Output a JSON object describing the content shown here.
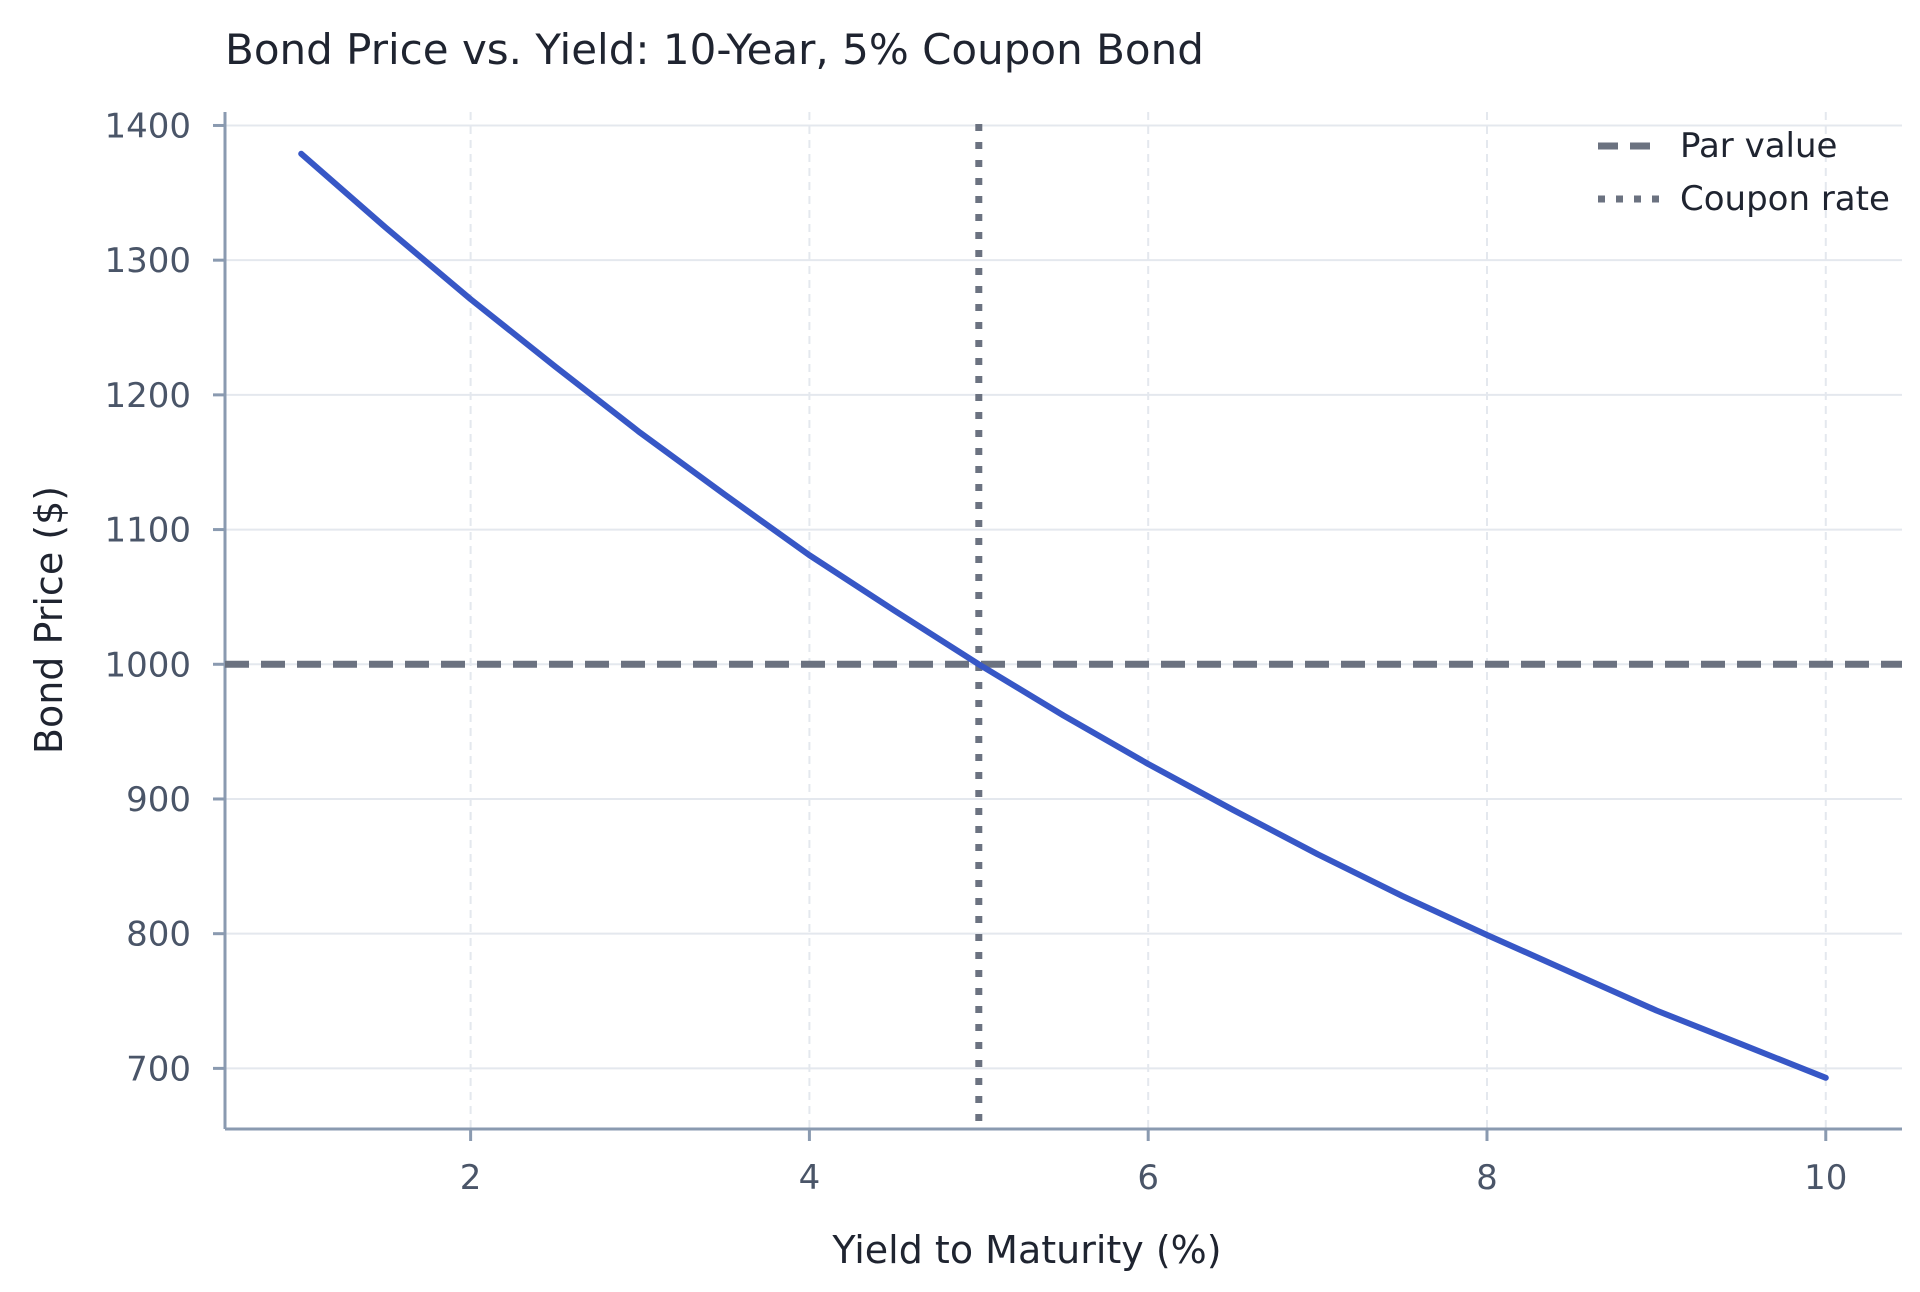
{
  "chart_data": {
    "type": "line",
    "title": "Bond Price vs. Yield: 10-Year, 5% Coupon Bond",
    "xlabel": "Yield to Maturity (%)",
    "ylabel": "Bond Price ($)",
    "xlim": [
      0.55,
      10.45
    ],
    "ylim": [
      655,
      1410
    ],
    "xticks": [
      2,
      4,
      6,
      8,
      10
    ],
    "yticks": [
      700,
      800,
      900,
      1000,
      1100,
      1200,
      1300,
      1400
    ],
    "grid": true,
    "legend_position": "top-right",
    "series": [
      {
        "name": "",
        "color": "#3757c6",
        "style": "solid",
        "x": [
          1.0,
          1.5,
          2.0,
          2.5,
          3.0,
          3.5,
          4.0,
          4.5,
          5.0,
          5.5,
          6.0,
          6.5,
          7.0,
          7.5,
          8.0,
          8.5,
          9.0,
          9.5,
          10.0
        ],
        "y": [
          1379,
          1324,
          1271,
          1221,
          1172,
          1126,
          1081,
          1040,
          1000,
          962,
          926,
          892,
          859,
          828,
          799,
          771,
          743,
          718,
          693
        ]
      }
    ],
    "reference_lines": [
      {
        "name": "Par value",
        "orientation": "horizontal",
        "value": 1000,
        "style": "dashed",
        "color": "#6b7280"
      },
      {
        "name": "Coupon rate",
        "orientation": "vertical",
        "value": 5,
        "style": "dotted",
        "color": "#6b7280"
      }
    ]
  }
}
